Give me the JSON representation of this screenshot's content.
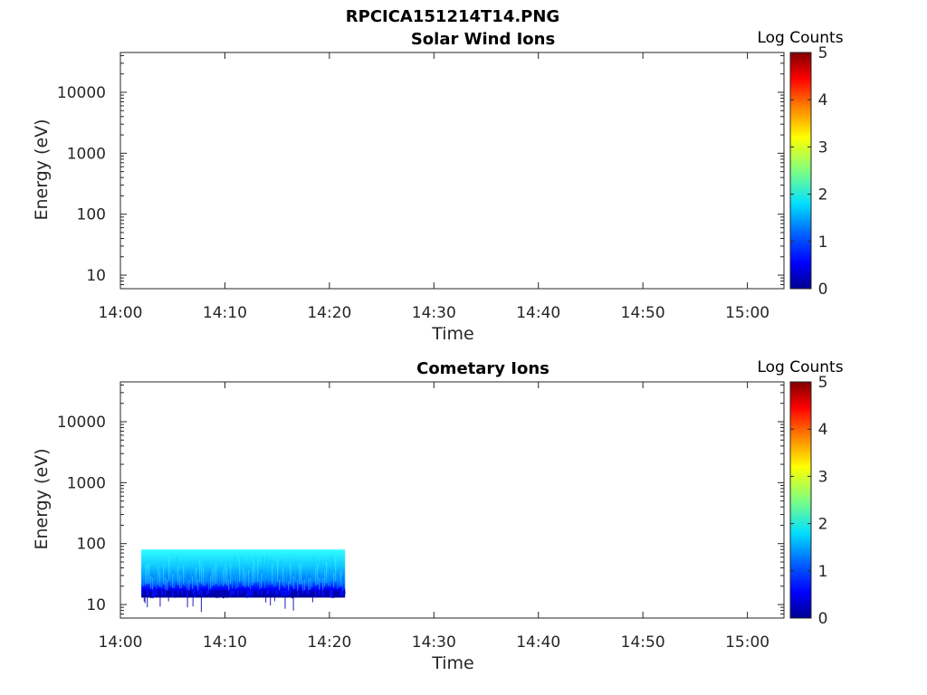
{
  "figure_title": "RPCICA151214T14.PNG",
  "colors": {
    "axis": "#262626",
    "jet": [
      "#00008f",
      "#0000ff",
      "#0080ff",
      "#00ffff",
      "#80ff80",
      "#ffff00",
      "#ff8000",
      "#ff0000",
      "#800000"
    ]
  },
  "chart_data": [
    {
      "type": "heatmap",
      "title": "Solar Wind Ions",
      "xlabel": "Time",
      "ylabel": "Energy (eV)",
      "x_ticks": [
        "14:00",
        "14:10",
        "14:20",
        "14:30",
        "14:40",
        "14:50",
        "15:00"
      ],
      "x_range_minutes": [
        0,
        63.5
      ],
      "y_scale": "log",
      "y_ticks": [
        "10",
        "100",
        "1000",
        "10000"
      ],
      "y_range": [
        6,
        45000
      ],
      "colorbar": {
        "label": "Log Counts",
        "range": [
          0,
          5
        ],
        "ticks": [
          "0",
          "1",
          "2",
          "3",
          "4",
          "5"
        ]
      },
      "data_regions": []
    },
    {
      "type": "heatmap",
      "title": "Cometary Ions",
      "xlabel": "Time",
      "ylabel": "Energy (eV)",
      "x_ticks": [
        "14:00",
        "14:10",
        "14:20",
        "14:30",
        "14:40",
        "14:50",
        "15:00"
      ],
      "x_range_minutes": [
        0,
        63.5
      ],
      "y_scale": "log",
      "y_ticks": [
        "10",
        "100",
        "1000",
        "10000"
      ],
      "y_range": [
        6,
        45000
      ],
      "colorbar": {
        "label": "Log Counts",
        "range": [
          0,
          5
        ],
        "ticks": [
          "0",
          "1",
          "2",
          "3",
          "4",
          "5"
        ]
      },
      "data_regions": [
        {
          "time_start": "14:02",
          "time_end": "14:21.5",
          "energy_min": 13,
          "energy_max": 80,
          "log_counts_min": 0.5,
          "log_counts_max": 2.0
        }
      ]
    }
  ]
}
